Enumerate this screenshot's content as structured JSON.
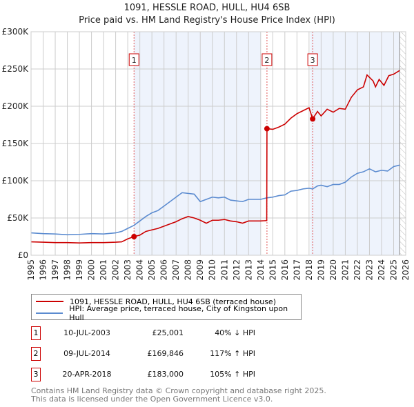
{
  "chart_data": {
    "type": "line",
    "title": "1091, HESSLE ROAD, HULL, HU4 6SB",
    "subtitle": "Price paid vs. HM Land Registry's House Price Index (HPI)",
    "xlim": [
      1995,
      2026
    ],
    "ylim": [
      0,
      300000
    ],
    "x_ticks": [
      "1995",
      "1996",
      "1997",
      "1998",
      "1999",
      "2000",
      "2001",
      "2002",
      "2003",
      "2004",
      "2005",
      "2006",
      "2007",
      "2008",
      "2009",
      "2010",
      "2011",
      "2012",
      "2013",
      "2014",
      "2015",
      "2016",
      "2017",
      "2018",
      "2019",
      "2020",
      "2021",
      "2022",
      "2023",
      "2024",
      "2025",
      "2026"
    ],
    "y_ticks": [
      {
        "v": 0,
        "label": "£0"
      },
      {
        "v": 50000,
        "label": "£50K"
      },
      {
        "v": 100000,
        "label": "£100K"
      },
      {
        "v": 150000,
        "label": "£150K"
      },
      {
        "v": 200000,
        "label": "£200K"
      },
      {
        "v": 250000,
        "label": "£250K"
      },
      {
        "v": 300000,
        "label": "£300K"
      }
    ],
    "grid": true,
    "series": [
      {
        "name": "1091, HESSLE ROAD, HULL, HU4 6SB (terraced house)",
        "color": "#cc0000",
        "x": [
          1995,
          1996,
          1997,
          1998,
          1999,
          2000,
          2001,
          2002,
          2002.5,
          2003,
          2003.52,
          2004,
          2004.5,
          2005,
          2005.5,
          2006,
          2006.5,
          2007,
          2007.5,
          2008,
          2008.5,
          2009,
          2009.5,
          2010,
          2010.5,
          2011,
          2011.5,
          2012,
          2012.5,
          2013,
          2014,
          2014.5,
          2014.52,
          2015,
          2015.5,
          2016,
          2016.5,
          2017,
          2017.5,
          2018,
          2018.3,
          2018.7,
          2019,
          2019.5,
          2020,
          2020.5,
          2021,
          2021.5,
          2022,
          2022.5,
          2022.8,
          2023.3,
          2023.5,
          2023.8,
          2024.2,
          2024.6,
          2025,
          2025.5
        ],
        "y": [
          18000,
          17500,
          17000,
          17000,
          16500,
          17000,
          17000,
          17500,
          18000,
          22000,
          25001,
          27000,
          32000,
          34000,
          36000,
          39000,
          42000,
          45000,
          49000,
          52000,
          50000,
          47000,
          43000,
          47000,
          47000,
          48000,
          46000,
          45000,
          43000,
          46000,
          46000,
          46500,
          169846,
          169000,
          172000,
          176000,
          184000,
          190000,
          194000,
          198000,
          183000,
          193000,
          187000,
          196000,
          192000,
          197000,
          196000,
          212000,
          222000,
          226000,
          242000,
          234000,
          226000,
          236000,
          228000,
          241000,
          243000,
          248000
        ]
      },
      {
        "name": "HPI: Average price, terraced house, City of Kingston upon Hull",
        "color": "#5b8bd0",
        "x": [
          1995,
          1996,
          1997,
          1998,
          1999,
          2000,
          2001,
          2002,
          2002.5,
          2003,
          2003.5,
          2004,
          2004.5,
          2005,
          2005.5,
          2006,
          2006.5,
          2007,
          2007.5,
          2008,
          2008.5,
          2009,
          2009.5,
          2010,
          2010.5,
          2011,
          2011.5,
          2012,
          2012.5,
          2013,
          2013.5,
          2014,
          2014.5,
          2015,
          2015.5,
          2016,
          2016.5,
          2017,
          2017.5,
          2018,
          2018.3,
          2018.7,
          2019,
          2019.5,
          2020,
          2020.5,
          2021,
          2021.5,
          2022,
          2022.5,
          2023,
          2023.5,
          2024,
          2024.5,
          2025,
          2025.5
        ],
        "y": [
          30000,
          29000,
          28500,
          27500,
          28000,
          29000,
          28500,
          30000,
          32000,
          36000,
          40000,
          46000,
          52000,
          57000,
          60000,
          66000,
          72000,
          78000,
          84000,
          83000,
          82000,
          72000,
          75000,
          78000,
          77000,
          78000,
          74000,
          73000,
          72000,
          75000,
          75000,
          75000,
          77000,
          78000,
          80000,
          81000,
          86000,
          87000,
          89000,
          90000,
          89000,
          93000,
          94000,
          92000,
          95000,
          95000,
          98000,
          105000,
          110000,
          112000,
          116000,
          112000,
          114000,
          113000,
          119000,
          121000
        ]
      }
    ],
    "sales": [
      {
        "n": "1",
        "x": 2003.52,
        "date": "10-JUL-2003",
        "price": "£25,001",
        "value": 25001,
        "hpi": "40% ↓ HPI"
      },
      {
        "n": "2",
        "x": 2014.52,
        "date": "09-JUL-2014",
        "price": "£169,846",
        "value": 169846,
        "hpi": "117% ↑ HPI"
      },
      {
        "n": "3",
        "x": 2018.3,
        "date": "20-APR-2018",
        "price": "£183,000",
        "value": 183000,
        "hpi": "105% ↑ HPI"
      }
    ],
    "legend_position": "below"
  },
  "footer": {
    "line1": "Contains HM Land Registry data © Crown copyright and database right 2025.",
    "line2": "This data is licensed under the Open Government Licence v3.0."
  }
}
